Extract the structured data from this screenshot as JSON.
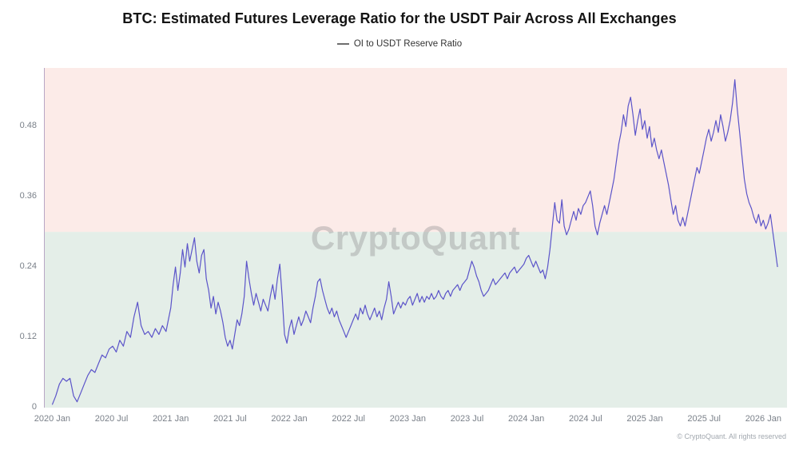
{
  "title": "BTC: Estimated Futures Leverage Ratio for the USDT Pair Across All Exchanges",
  "legend": {
    "label": "OI to USDT Reserve Ratio"
  },
  "watermark": "CryptoQuant",
  "footer": "© CryptoQuant. All rights reserved",
  "chart_data": {
    "type": "line",
    "title": "BTC: Estimated Futures Leverage Ratio for the USDT Pair Across All Exchanges",
    "xlabel": "",
    "ylabel": "",
    "series_name": "OI to USDT Reserve Ratio",
    "line_color": "#5b54c9",
    "axis_color": "#b9a7c6",
    "xlim": [
      2019.93,
      2026.2
    ],
    "ylim": [
      0,
      0.58
    ],
    "grid": false,
    "legend_position": "top-center",
    "zones": [
      {
        "from": 0.3,
        "to": 0.58,
        "color": "#fcebe8"
      },
      {
        "from": 0.0,
        "to": 0.3,
        "color": "#e4eee8"
      }
    ],
    "y_ticks": [
      {
        "v": 0,
        "label": "0"
      },
      {
        "v": 0.12,
        "label": "0.12"
      },
      {
        "v": 0.24,
        "label": "0.24"
      },
      {
        "v": 0.36,
        "label": "0.36"
      },
      {
        "v": 0.48,
        "label": "0.48"
      }
    ],
    "x_ticks": [
      {
        "v": 2020.0,
        "label": "2020 Jan"
      },
      {
        "v": 2020.5,
        "label": "2020 Jul"
      },
      {
        "v": 2021.0,
        "label": "2021 Jan"
      },
      {
        "v": 2021.5,
        "label": "2021 Jul"
      },
      {
        "v": 2022.0,
        "label": "2022 Jan"
      },
      {
        "v": 2022.5,
        "label": "2022 Jul"
      },
      {
        "v": 2023.0,
        "label": "2023 Jan"
      },
      {
        "v": 2023.5,
        "label": "2023 Jul"
      },
      {
        "v": 2024.0,
        "label": "2024 Jan"
      },
      {
        "v": 2024.5,
        "label": "2024 Jul"
      },
      {
        "v": 2025.0,
        "label": "2025 Jan"
      },
      {
        "v": 2025.5,
        "label": "2025 Jul"
      },
      {
        "v": 2026.0,
        "label": "2026 Jan"
      }
    ],
    "points": [
      [
        2020.0,
        0.005
      ],
      [
        2020.03,
        0.02
      ],
      [
        2020.06,
        0.04
      ],
      [
        2020.09,
        0.05
      ],
      [
        2020.12,
        0.045
      ],
      [
        2020.15,
        0.05
      ],
      [
        2020.18,
        0.02
      ],
      [
        2020.21,
        0.01
      ],
      [
        2020.24,
        0.025
      ],
      [
        2020.27,
        0.04
      ],
      [
        2020.3,
        0.055
      ],
      [
        2020.33,
        0.065
      ],
      [
        2020.36,
        0.06
      ],
      [
        2020.39,
        0.075
      ],
      [
        2020.42,
        0.09
      ],
      [
        2020.45,
        0.085
      ],
      [
        2020.48,
        0.1
      ],
      [
        2020.51,
        0.105
      ],
      [
        2020.54,
        0.095
      ],
      [
        2020.57,
        0.115
      ],
      [
        2020.6,
        0.105
      ],
      [
        2020.63,
        0.13
      ],
      [
        2020.66,
        0.12
      ],
      [
        2020.69,
        0.155
      ],
      [
        2020.72,
        0.18
      ],
      [
        2020.75,
        0.14
      ],
      [
        2020.78,
        0.125
      ],
      [
        2020.81,
        0.13
      ],
      [
        2020.84,
        0.12
      ],
      [
        2020.87,
        0.135
      ],
      [
        2020.9,
        0.125
      ],
      [
        2020.93,
        0.14
      ],
      [
        2020.96,
        0.13
      ],
      [
        2020.98,
        0.15
      ],
      [
        2021.0,
        0.17
      ],
      [
        2021.02,
        0.21
      ],
      [
        2021.04,
        0.24
      ],
      [
        2021.06,
        0.2
      ],
      [
        2021.08,
        0.23
      ],
      [
        2021.1,
        0.27
      ],
      [
        2021.12,
        0.24
      ],
      [
        2021.14,
        0.28
      ],
      [
        2021.16,
        0.25
      ],
      [
        2021.18,
        0.27
      ],
      [
        2021.2,
        0.29
      ],
      [
        2021.22,
        0.25
      ],
      [
        2021.24,
        0.23
      ],
      [
        2021.26,
        0.26
      ],
      [
        2021.28,
        0.27
      ],
      [
        2021.3,
        0.22
      ],
      [
        2021.32,
        0.2
      ],
      [
        2021.34,
        0.17
      ],
      [
        2021.36,
        0.19
      ],
      [
        2021.38,
        0.16
      ],
      [
        2021.4,
        0.18
      ],
      [
        2021.42,
        0.165
      ],
      [
        2021.44,
        0.145
      ],
      [
        2021.46,
        0.12
      ],
      [
        2021.48,
        0.105
      ],
      [
        2021.5,
        0.115
      ],
      [
        2021.52,
        0.1
      ],
      [
        2021.54,
        0.125
      ],
      [
        2021.56,
        0.15
      ],
      [
        2021.58,
        0.14
      ],
      [
        2021.6,
        0.16
      ],
      [
        2021.62,
        0.19
      ],
      [
        2021.64,
        0.25
      ],
      [
        2021.66,
        0.22
      ],
      [
        2021.68,
        0.195
      ],
      [
        2021.7,
        0.175
      ],
      [
        2021.72,
        0.195
      ],
      [
        2021.74,
        0.18
      ],
      [
        2021.76,
        0.165
      ],
      [
        2021.78,
        0.185
      ],
      [
        2021.8,
        0.175
      ],
      [
        2021.82,
        0.165
      ],
      [
        2021.84,
        0.19
      ],
      [
        2021.86,
        0.21
      ],
      [
        2021.88,
        0.185
      ],
      [
        2021.9,
        0.22
      ],
      [
        2021.92,
        0.245
      ],
      [
        2021.94,
        0.19
      ],
      [
        2021.96,
        0.125
      ],
      [
        2021.98,
        0.11
      ],
      [
        2022.0,
        0.135
      ],
      [
        2022.02,
        0.15
      ],
      [
        2022.04,
        0.125
      ],
      [
        2022.06,
        0.14
      ],
      [
        2022.08,
        0.155
      ],
      [
        2022.1,
        0.14
      ],
      [
        2022.12,
        0.15
      ],
      [
        2022.14,
        0.165
      ],
      [
        2022.16,
        0.155
      ],
      [
        2022.18,
        0.145
      ],
      [
        2022.2,
        0.17
      ],
      [
        2022.22,
        0.19
      ],
      [
        2022.24,
        0.215
      ],
      [
        2022.26,
        0.22
      ],
      [
        2022.28,
        0.2
      ],
      [
        2022.3,
        0.185
      ],
      [
        2022.32,
        0.17
      ],
      [
        2022.34,
        0.16
      ],
      [
        2022.36,
        0.17
      ],
      [
        2022.38,
        0.155
      ],
      [
        2022.4,
        0.165
      ],
      [
        2022.42,
        0.15
      ],
      [
        2022.44,
        0.14
      ],
      [
        2022.46,
        0.13
      ],
      [
        2022.48,
        0.12
      ],
      [
        2022.5,
        0.13
      ],
      [
        2022.52,
        0.14
      ],
      [
        2022.54,
        0.15
      ],
      [
        2022.56,
        0.16
      ],
      [
        2022.58,
        0.15
      ],
      [
        2022.6,
        0.17
      ],
      [
        2022.62,
        0.16
      ],
      [
        2022.64,
        0.175
      ],
      [
        2022.66,
        0.16
      ],
      [
        2022.68,
        0.15
      ],
      [
        2022.7,
        0.16
      ],
      [
        2022.72,
        0.17
      ],
      [
        2022.74,
        0.155
      ],
      [
        2022.76,
        0.165
      ],
      [
        2022.78,
        0.15
      ],
      [
        2022.8,
        0.17
      ],
      [
        2022.82,
        0.185
      ],
      [
        2022.84,
        0.215
      ],
      [
        2022.86,
        0.19
      ],
      [
        2022.88,
        0.16
      ],
      [
        2022.9,
        0.17
      ],
      [
        2022.92,
        0.18
      ],
      [
        2022.94,
        0.17
      ],
      [
        2022.96,
        0.18
      ],
      [
        2022.98,
        0.175
      ],
      [
        2023.0,
        0.185
      ],
      [
        2023.02,
        0.19
      ],
      [
        2023.04,
        0.175
      ],
      [
        2023.06,
        0.185
      ],
      [
        2023.08,
        0.195
      ],
      [
        2023.1,
        0.18
      ],
      [
        2023.12,
        0.19
      ],
      [
        2023.14,
        0.18
      ],
      [
        2023.16,
        0.19
      ],
      [
        2023.18,
        0.185
      ],
      [
        2023.2,
        0.195
      ],
      [
        2023.22,
        0.185
      ],
      [
        2023.24,
        0.19
      ],
      [
        2023.26,
        0.2
      ],
      [
        2023.28,
        0.19
      ],
      [
        2023.3,
        0.185
      ],
      [
        2023.32,
        0.195
      ],
      [
        2023.34,
        0.2
      ],
      [
        2023.36,
        0.19
      ],
      [
        2023.38,
        0.2
      ],
      [
        2023.4,
        0.205
      ],
      [
        2023.42,
        0.21
      ],
      [
        2023.44,
        0.2
      ],
      [
        2023.46,
        0.21
      ],
      [
        2023.48,
        0.215
      ],
      [
        2023.5,
        0.22
      ],
      [
        2023.52,
        0.235
      ],
      [
        2023.54,
        0.25
      ],
      [
        2023.56,
        0.24
      ],
      [
        2023.58,
        0.225
      ],
      [
        2023.6,
        0.215
      ],
      [
        2023.62,
        0.2
      ],
      [
        2023.64,
        0.19
      ],
      [
        2023.66,
        0.195
      ],
      [
        2023.68,
        0.2
      ],
      [
        2023.7,
        0.21
      ],
      [
        2023.72,
        0.22
      ],
      [
        2023.74,
        0.21
      ],
      [
        2023.76,
        0.215
      ],
      [
        2023.78,
        0.22
      ],
      [
        2023.8,
        0.225
      ],
      [
        2023.82,
        0.23
      ],
      [
        2023.84,
        0.22
      ],
      [
        2023.86,
        0.23
      ],
      [
        2023.88,
        0.235
      ],
      [
        2023.9,
        0.24
      ],
      [
        2023.92,
        0.23
      ],
      [
        2023.94,
        0.235
      ],
      [
        2023.96,
        0.24
      ],
      [
        2023.98,
        0.245
      ],
      [
        2024.0,
        0.255
      ],
      [
        2024.02,
        0.26
      ],
      [
        2024.04,
        0.25
      ],
      [
        2024.06,
        0.24
      ],
      [
        2024.08,
        0.25
      ],
      [
        2024.1,
        0.24
      ],
      [
        2024.12,
        0.23
      ],
      [
        2024.14,
        0.235
      ],
      [
        2024.16,
        0.22
      ],
      [
        2024.18,
        0.24
      ],
      [
        2024.2,
        0.27
      ],
      [
        2024.22,
        0.31
      ],
      [
        2024.24,
        0.35
      ],
      [
        2024.26,
        0.32
      ],
      [
        2024.28,
        0.315
      ],
      [
        2024.3,
        0.355
      ],
      [
        2024.32,
        0.31
      ],
      [
        2024.34,
        0.295
      ],
      [
        2024.36,
        0.305
      ],
      [
        2024.38,
        0.32
      ],
      [
        2024.4,
        0.335
      ],
      [
        2024.42,
        0.32
      ],
      [
        2024.44,
        0.34
      ],
      [
        2024.46,
        0.33
      ],
      [
        2024.48,
        0.345
      ],
      [
        2024.5,
        0.35
      ],
      [
        2024.52,
        0.36
      ],
      [
        2024.54,
        0.37
      ],
      [
        2024.56,
        0.345
      ],
      [
        2024.58,
        0.31
      ],
      [
        2024.6,
        0.295
      ],
      [
        2024.62,
        0.315
      ],
      [
        2024.64,
        0.33
      ],
      [
        2024.66,
        0.345
      ],
      [
        2024.68,
        0.33
      ],
      [
        2024.7,
        0.35
      ],
      [
        2024.72,
        0.37
      ],
      [
        2024.74,
        0.39
      ],
      [
        2024.76,
        0.42
      ],
      [
        2024.78,
        0.45
      ],
      [
        2024.8,
        0.47
      ],
      [
        2024.82,
        0.5
      ],
      [
        2024.84,
        0.48
      ],
      [
        2024.86,
        0.515
      ],
      [
        2024.88,
        0.53
      ],
      [
        2024.9,
        0.5
      ],
      [
        2024.92,
        0.465
      ],
      [
        2024.94,
        0.49
      ],
      [
        2024.96,
        0.51
      ],
      [
        2024.98,
        0.475
      ],
      [
        2025.0,
        0.49
      ],
      [
        2025.02,
        0.46
      ],
      [
        2025.04,
        0.48
      ],
      [
        2025.06,
        0.445
      ],
      [
        2025.08,
        0.46
      ],
      [
        2025.1,
        0.44
      ],
      [
        2025.12,
        0.425
      ],
      [
        2025.14,
        0.44
      ],
      [
        2025.16,
        0.42
      ],
      [
        2025.18,
        0.4
      ],
      [
        2025.2,
        0.38
      ],
      [
        2025.22,
        0.355
      ],
      [
        2025.24,
        0.33
      ],
      [
        2025.26,
        0.345
      ],
      [
        2025.28,
        0.32
      ],
      [
        2025.3,
        0.31
      ],
      [
        2025.32,
        0.325
      ],
      [
        2025.34,
        0.31
      ],
      [
        2025.36,
        0.33
      ],
      [
        2025.38,
        0.35
      ],
      [
        2025.4,
        0.37
      ],
      [
        2025.42,
        0.39
      ],
      [
        2025.44,
        0.41
      ],
      [
        2025.46,
        0.4
      ],
      [
        2025.48,
        0.42
      ],
      [
        2025.5,
        0.44
      ],
      [
        2025.52,
        0.46
      ],
      [
        2025.54,
        0.475
      ],
      [
        2025.56,
        0.455
      ],
      [
        2025.58,
        0.47
      ],
      [
        2025.6,
        0.49
      ],
      [
        2025.62,
        0.47
      ],
      [
        2025.64,
        0.5
      ],
      [
        2025.66,
        0.48
      ],
      [
        2025.68,
        0.455
      ],
      [
        2025.7,
        0.47
      ],
      [
        2025.72,
        0.49
      ],
      [
        2025.74,
        0.52
      ],
      [
        2025.76,
        0.56
      ],
      [
        2025.78,
        0.51
      ],
      [
        2025.8,
        0.47
      ],
      [
        2025.82,
        0.43
      ],
      [
        2025.84,
        0.39
      ],
      [
        2025.86,
        0.365
      ],
      [
        2025.88,
        0.35
      ],
      [
        2025.9,
        0.34
      ],
      [
        2025.92,
        0.325
      ],
      [
        2025.94,
        0.315
      ],
      [
        2025.96,
        0.33
      ],
      [
        2025.98,
        0.31
      ],
      [
        2026.0,
        0.32
      ],
      [
        2026.02,
        0.305
      ],
      [
        2026.04,
        0.315
      ],
      [
        2026.06,
        0.33
      ],
      [
        2026.08,
        0.3
      ],
      [
        2026.1,
        0.27
      ],
      [
        2026.12,
        0.24
      ]
    ]
  }
}
